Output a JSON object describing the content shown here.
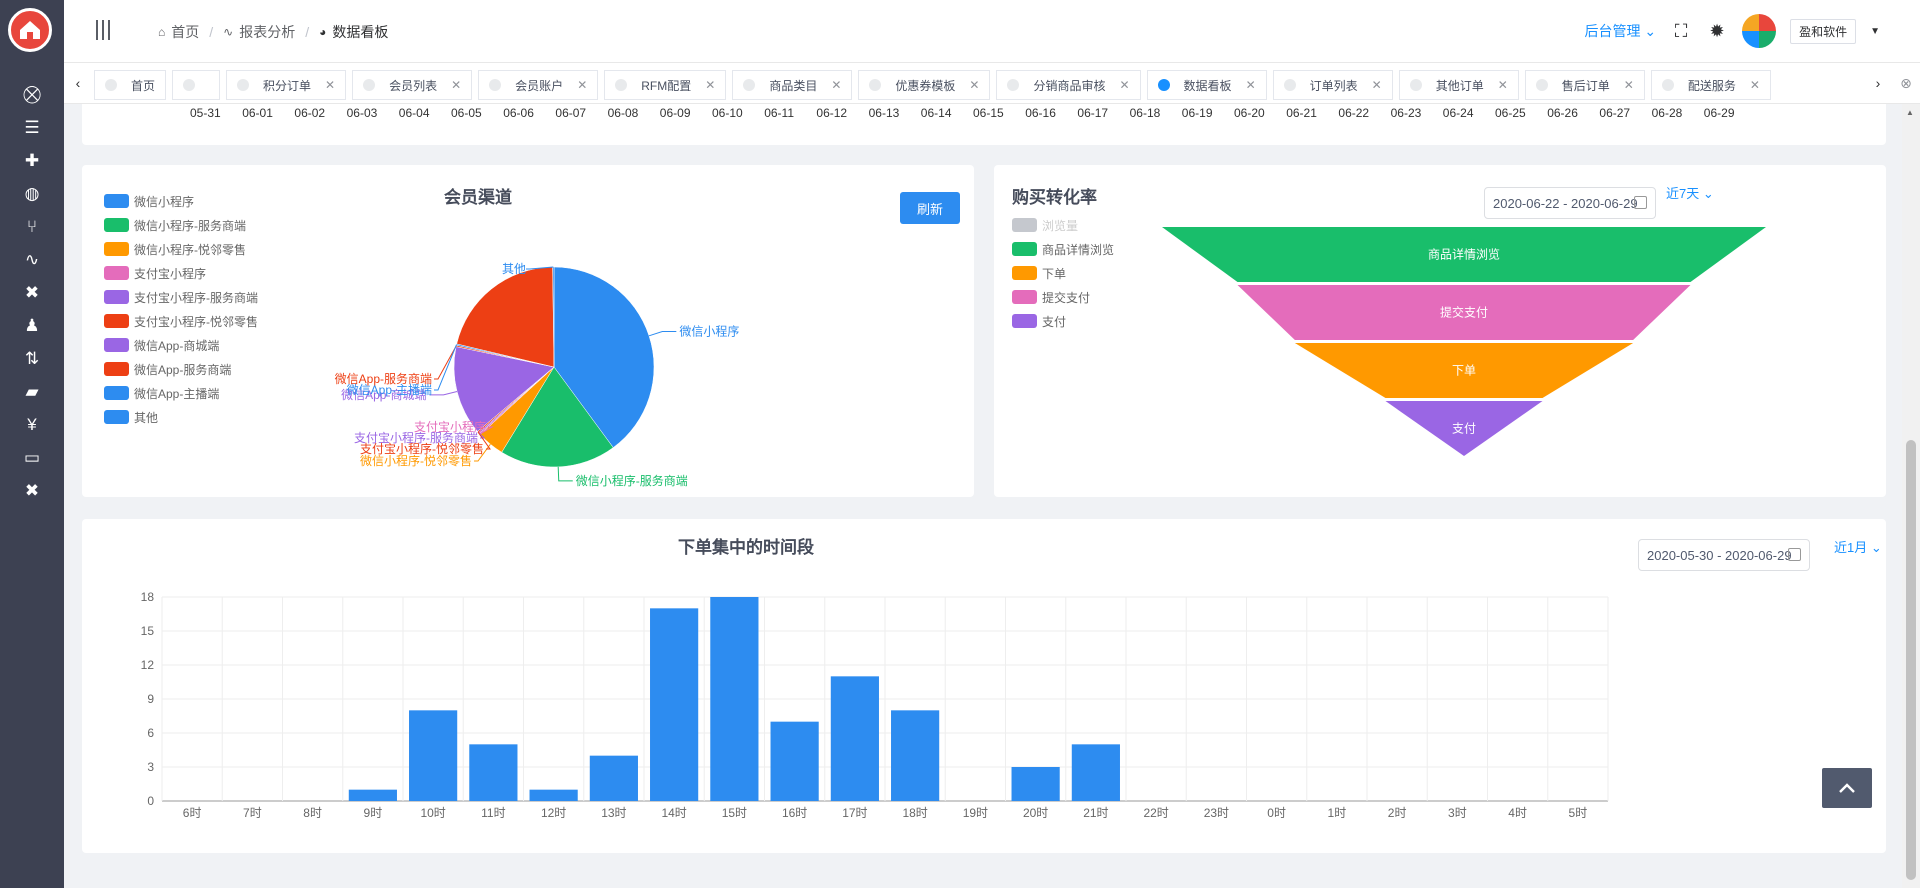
{
  "header": {
    "breadcrumb": [
      {
        "label": "首页",
        "icon": "home-icon"
      },
      {
        "label": "报表分析",
        "icon": "pulse-icon"
      },
      {
        "label": "数据看板",
        "icon": "pie-icon"
      }
    ],
    "admin_menu": "后台管理",
    "company": "盈和软件"
  },
  "tabs": [
    {
      "label": "首页",
      "closable": false,
      "active": false
    },
    {
      "label": "",
      "closable": false,
      "active": false
    },
    {
      "label": "积分订单",
      "closable": true,
      "active": false
    },
    {
      "label": "会员列表",
      "closable": true,
      "active": false
    },
    {
      "label": "会员账户",
      "closable": true,
      "active": false
    },
    {
      "label": "RFM配置",
      "closable": true,
      "active": false
    },
    {
      "label": "商品类目",
      "closable": true,
      "active": false
    },
    {
      "label": "优惠券模板",
      "closable": true,
      "active": false
    },
    {
      "label": "分销商品审核",
      "closable": true,
      "active": false
    },
    {
      "label": "数据看板",
      "closable": true,
      "active": true
    },
    {
      "label": "订单列表",
      "closable": true,
      "active": false
    },
    {
      "label": "其他订单",
      "closable": true,
      "active": false
    },
    {
      "label": "售后订单",
      "closable": true,
      "active": false
    },
    {
      "label": "配送服务",
      "closable": true,
      "active": false
    }
  ],
  "date_strip": [
    "05-31",
    "06-01",
    "06-02",
    "06-03",
    "06-04",
    "06-05",
    "06-06",
    "06-07",
    "06-08",
    "06-09",
    "06-10",
    "06-11",
    "06-12",
    "06-13",
    "06-14",
    "06-15",
    "06-16",
    "06-17",
    "06-18",
    "06-19",
    "06-20",
    "06-21",
    "06-22",
    "06-23",
    "06-24",
    "06-25",
    "06-26",
    "06-27",
    "06-28",
    "06-29"
  ],
  "member_channel": {
    "title": "会员渠道",
    "refresh_label": "刷新",
    "chart_data": {
      "type": "pie",
      "title": "会员渠道",
      "legend_position": "left",
      "slices": [
        {
          "name": "微信小程序",
          "value": 36,
          "color": "#2d8cf0"
        },
        {
          "name": "微信小程序-服务商端",
          "value": 17,
          "color": "#19be6b"
        },
        {
          "name": "微信小程序-悦邻零售",
          "value": 4,
          "color": "#ff9900"
        },
        {
          "name": "支付宝小程序",
          "value": 0.2,
          "color": "#e46cbb"
        },
        {
          "name": "支付宝小程序-服务商端",
          "value": 0.2,
          "color": "#9a66e4"
        },
        {
          "name": "支付宝小程序-悦邻零售",
          "value": 0.2,
          "color": "#ed3f14"
        },
        {
          "name": "微信App-商城端",
          "value": 13,
          "color": "#9a66e4"
        },
        {
          "name": "微信App-服务商端",
          "value": 0.2,
          "color": "#ed3f14"
        },
        {
          "name": "微信App-主播端",
          "value": 0.2,
          "color": "#2d8cf0"
        },
        {
          "name": "微信App-服务商端",
          "value": 19,
          "color": "#ed3f14",
          "legend": false,
          "label": false
        },
        {
          "name": "其他",
          "value": 0.2,
          "color": "#2d8cf0"
        }
      ]
    }
  },
  "conversion": {
    "title": "购买转化率",
    "date_range": "2020-06-22 - 2020-06-29",
    "range_select": "近7天",
    "chart_data": {
      "type": "funnel",
      "title": "购买转化率",
      "legend_position": "left",
      "legend": [
        {
          "name": "浏览量",
          "color": "#c5c8ce",
          "disabled": true
        },
        {
          "name": "商品详情浏览",
          "color": "#19be6b"
        },
        {
          "name": "下单",
          "color": "#ff9900"
        },
        {
          "name": "提交支付",
          "color": "#e46cbb"
        },
        {
          "name": "支付",
          "color": "#9a66e4"
        }
      ],
      "stages": [
        {
          "name": "商品详情浏览",
          "color": "#19be6b",
          "value": 100
        },
        {
          "name": "提交支付",
          "color": "#e46cbb",
          "value": 75
        },
        {
          "name": "下单",
          "color": "#ff9900",
          "value": 56
        },
        {
          "name": "支付",
          "color": "#9a66e4",
          "value": 26
        }
      ]
    }
  },
  "order_time": {
    "title": "下单集中的时间段",
    "date_range": "2020-05-30 - 2020-06-29",
    "range_select": "近1月",
    "chart_data": {
      "type": "bar",
      "title": "下单集中的时间段",
      "categories": [
        "6时",
        "7时",
        "8时",
        "9时",
        "10时",
        "11时",
        "12时",
        "13时",
        "14时",
        "15时",
        "16时",
        "17时",
        "18时",
        "19时",
        "20时",
        "21时",
        "22时",
        "23时",
        "0时",
        "1时",
        "2时",
        "3时",
        "4时",
        "5时"
      ],
      "values": [
        0,
        0,
        0,
        1,
        8,
        5,
        1,
        4,
        17,
        18,
        7,
        11,
        8,
        0,
        3,
        5,
        0,
        0,
        0,
        0,
        0,
        0,
        0,
        0
      ],
      "ylim": [
        0,
        18
      ],
      "yticks": [
        0,
        3,
        6,
        9,
        12,
        15,
        18
      ],
      "grid": true,
      "color": "#2d8cf0"
    }
  },
  "sidebar_icons": [
    "basket-icon",
    "list-icon",
    "user-add-icon",
    "palette-icon",
    "branch-icon",
    "pulse-icon",
    "tools-icon",
    "person-icon",
    "exchange-icon",
    "briefcase-icon",
    "yen-icon",
    "monitor-icon",
    "wrench-icon"
  ]
}
